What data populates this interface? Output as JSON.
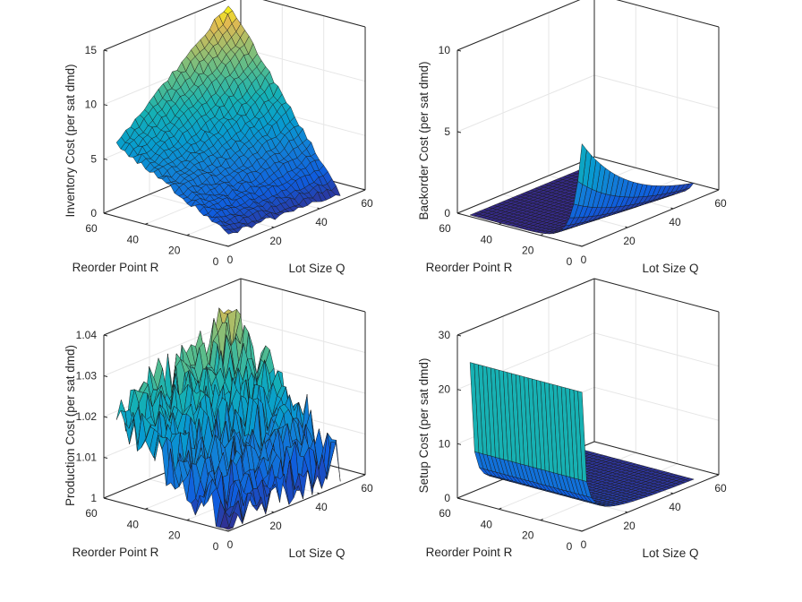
{
  "colors": {
    "background": "#ffffff",
    "box": "#262626",
    "grid": "#e6e6e6",
    "text": "#262626",
    "edge": "#1a1a1a",
    "colormap": "parula"
  },
  "chart_data": [
    {
      "type": "surface",
      "xlabel": "Lot Size Q",
      "ylabel": "Reorder Point R",
      "zlabel": "Inventory Cost (per sat dmd)",
      "xlim": [
        0,
        60
      ],
      "ylim": [
        0,
        60
      ],
      "zlim": [
        0,
        15
      ],
      "xticks": [
        "0",
        "20",
        "40",
        "60"
      ],
      "yticks": [
        "0",
        "20",
        "40",
        "60"
      ],
      "zticks": [
        "0",
        "5",
        "10",
        "15"
      ],
      "grid": true,
      "q_range": [
        1,
        50
      ],
      "r_range": [
        1,
        55
      ],
      "mesh": [
        24,
        27
      ],
      "corner_values": {
        "q1_r1": 1.0,
        "q50_r1": 0.5,
        "q1_r55": 6.5,
        "q50_r55": 15.2
      }
    },
    {
      "type": "surface",
      "xlabel": "Lot Size Q",
      "ylabel": "Reorder Point R",
      "zlabel": "Backorder Cost (per sat dmd)",
      "xlim": [
        0,
        60
      ],
      "ylim": [
        0,
        60
      ],
      "zlim": [
        0,
        10
      ],
      "xticks": [
        "0",
        "20",
        "40",
        "60"
      ],
      "yticks": [
        "0",
        "20",
        "40",
        "60"
      ],
      "zticks": [
        "0",
        "5",
        "10"
      ],
      "grid": true,
      "q_range": [
        1,
        50
      ],
      "r_range": [
        1,
        55
      ],
      "mesh": [
        24,
        27
      ],
      "corner_values": {
        "q1_r1": 6.0,
        "q50_r1": 0.2,
        "q1_r55": 0.0,
        "q50_r55": 0.0
      }
    },
    {
      "type": "surface",
      "xlabel": "Lot Size Q",
      "ylabel": "Reorder Point R",
      "zlabel": "Production Cost (per sat dmd)",
      "xlim": [
        0,
        60
      ],
      "ylim": [
        0,
        60
      ],
      "zlim": [
        1,
        1.04
      ],
      "xticks": [
        "0",
        "20",
        "40",
        "60"
      ],
      "yticks": [
        "0",
        "20",
        "40",
        "60"
      ],
      "zticks": [
        "1",
        "1.01",
        "1.02",
        "1.03",
        "1.04"
      ],
      "grid": true,
      "q_range": [
        1,
        50
      ],
      "r_range": [
        1,
        55
      ],
      "mesh": [
        24,
        27
      ],
      "corner_values": {
        "q1_r1": 1.001,
        "q50_r1": 1.006,
        "q1_r55": 1.02,
        "q50_r55": 1.033
      }
    },
    {
      "type": "surface",
      "xlabel": "Lot Size Q",
      "ylabel": "Reorder Point R",
      "zlabel": "Setup Cost (per sat dmd)",
      "xlim": [
        0,
        60
      ],
      "ylim": [
        0,
        60
      ],
      "zlim": [
        0,
        30
      ],
      "xticks": [
        "0",
        "20",
        "40",
        "60"
      ],
      "yticks": [
        "0",
        "20",
        "40",
        "60"
      ],
      "zticks": [
        "0",
        "10",
        "20",
        "30"
      ],
      "grid": true,
      "q_range": [
        1,
        50
      ],
      "r_range": [
        1,
        55
      ],
      "mesh": [
        24,
        27
      ],
      "corner_values": {
        "q1_r1": 25.0,
        "q2_r1": 12.5,
        "q5_r1": 5.0,
        "q50_r1": 0.5
      }
    }
  ]
}
